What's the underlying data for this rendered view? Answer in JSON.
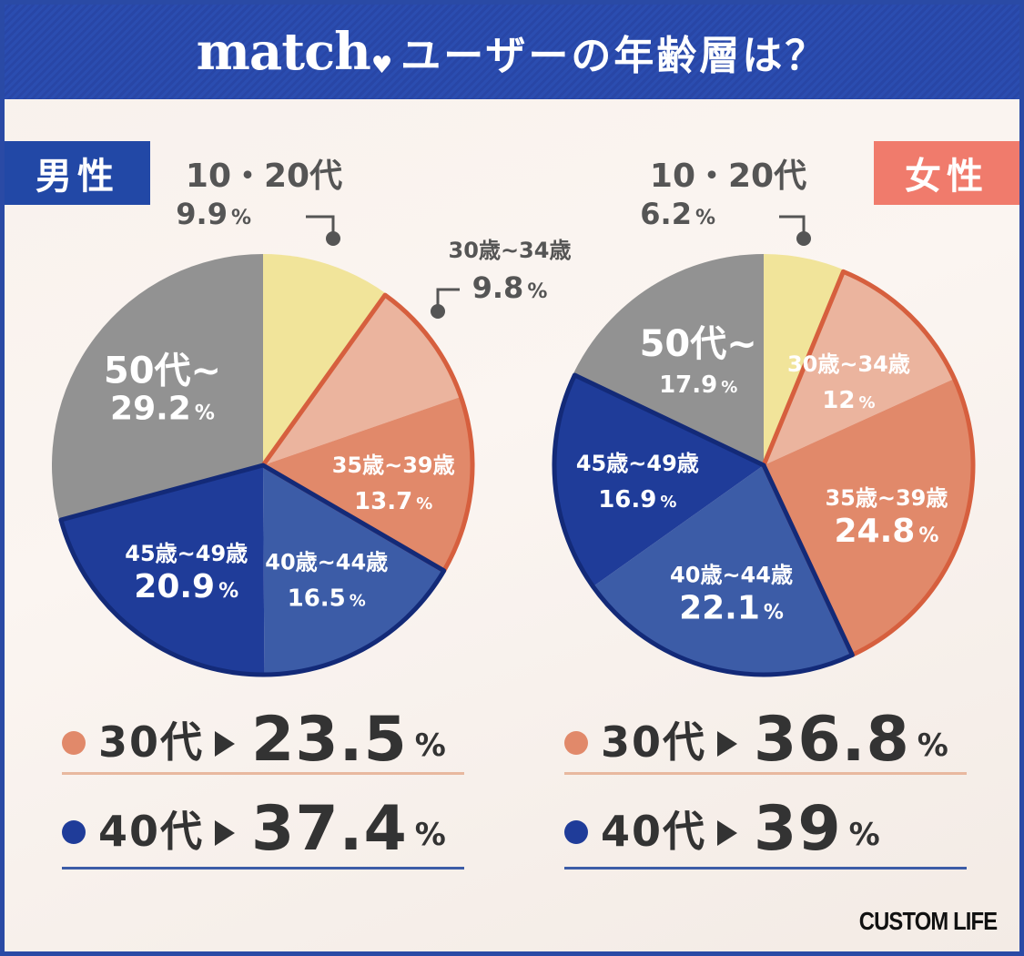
{
  "header": {
    "brand": "match",
    "title": "ユーザーの年齢層は？"
  },
  "colors": {
    "header": "#2b4db0",
    "male_badge": "#2248a6",
    "female_badge": "#f07b6c",
    "age_10_20": "#f1e49a",
    "age_30_34": "#ebb49e",
    "age_35_39": "#e1896a",
    "age_40_44": "#3c5ca7",
    "age_45_49": "#1f3c99",
    "age_50_plus": "#929292",
    "orange_border": "#d65f3e",
    "navy_border": "#132a78",
    "dot_30": "#e1896a",
    "dot_40": "#1f3c99",
    "line_30": "#e8b89f",
    "line_40": "#3c5ca7"
  },
  "chart_data": [
    {
      "type": "pie",
      "title": "男性",
      "categories": [
        "10・20代",
        "30歳~34歳",
        "35歳~39歳",
        "40歳~44歳",
        "45歳~49歳",
        "50代~"
      ],
      "values": [
        9.9,
        9.8,
        13.7,
        16.5,
        20.9,
        29.2
      ],
      "unit": "%",
      "summary": [
        {
          "label": "30代",
          "value": "23.5",
          "unit": "%"
        },
        {
          "label": "40代",
          "value": "37.4",
          "unit": "%"
        }
      ]
    },
    {
      "type": "pie",
      "title": "女性",
      "categories": [
        "10・20代",
        "30歳~34歳",
        "35歳~39歳",
        "40歳~44歳",
        "45歳~49歳",
        "50代~"
      ],
      "values": [
        6.2,
        12,
        24.8,
        22.1,
        16.9,
        17.9
      ],
      "unit": "%",
      "summary": [
        {
          "label": "30代",
          "value": "36.8",
          "unit": "%"
        },
        {
          "label": "40代",
          "value": "39",
          "unit": "%"
        }
      ]
    }
  ],
  "footer": {
    "logo": "CUSTOM LIFE"
  }
}
